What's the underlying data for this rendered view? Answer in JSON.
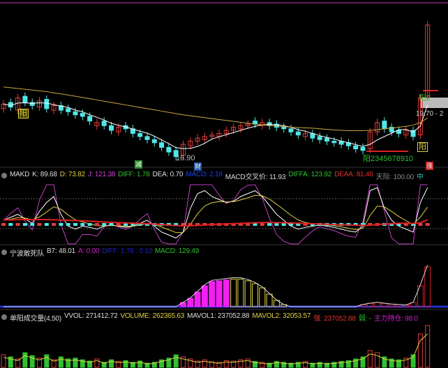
{
  "colors": {
    "up": "#e03c3c",
    "down": "#50e6e6",
    "ma_short": "#ffffff",
    "ma_long": "#c8a83c",
    "top_line": "#c040c0"
  },
  "main": {
    "low_label": "16.90",
    "price_label": "19.70 - 2",
    "labels": {
      "yang": "阳",
      "jian": "减",
      "cai": "财",
      "yang2": "阳2",
      "yang_seq": "阳2345678910",
      "yang_b": "阳",
      "zhang": "涨"
    }
  },
  "panel1": {
    "items": [
      {
        "text": "MAKD",
        "color": "#dddddd"
      },
      {
        "text": "K: 89.68",
        "color": "#dddddd"
      },
      {
        "text": "D: 73.82",
        "color": "#e0d040"
      },
      {
        "text": "J: 121.38",
        "color": "#d040d0"
      },
      {
        "text": "DIFF: 1.78",
        "color": "#30c030"
      },
      {
        "text": "DEA: 0.70",
        "color": "#dddddd"
      },
      {
        "text": "MACD: 2.16",
        "color": "#2040e0"
      },
      {
        "text": "MACD交叉价: 11.93",
        "color": "#dddddd"
      },
      {
        "text": "DIFFA: 123.92",
        "color": "#30c030"
      },
      {
        "text": "DEAA: 81.46",
        "color": "#e03030"
      },
      {
        "text": "天际: 100.00",
        "color": "#888888"
      },
      {
        "text": "中",
        "color": "#30c0c0"
      }
    ]
  },
  "panel2": {
    "items": [
      {
        "text": "宁波敢死队",
        "color": "#dddddd"
      },
      {
        "text": "B7: 48.01",
        "color": "#dddddd"
      },
      {
        "text": "A: 0.00",
        "color": "#d020d0"
      },
      {
        "text": "DIFF: 1.78 : 0.10",
        "color": "#2020c0"
      },
      {
        "text": "MACD: 129.49",
        "color": "#30c030"
      }
    ]
  },
  "panel3": {
    "items": [
      {
        "text": "单阳成交量(4,50)",
        "color": "#dddddd"
      },
      {
        "text": "VVOL: 271412.72",
        "color": "#dddddd"
      },
      {
        "text": "VOLUME: 262365.63",
        "color": "#e0d040"
      },
      {
        "text": "MAVOL1: 237052.88",
        "color": "#dddddd"
      },
      {
        "text": "MAVOL2: 32053.57",
        "color": "#e0d040"
      },
      {
        "text": "强: 237052.88",
        "color": "#e03030"
      },
      {
        "text": "弱: -",
        "color": "#30c030"
      },
      {
        "text": "主力持仓: 98.0",
        "color": "#d020d0"
      }
    ]
  },
  "chart_data": {
    "type": "candlestick",
    "close": [
      20.4,
      20.2,
      20.8,
      20.5,
      20.3,
      20.6,
      20.1,
      20.3,
      20.0,
      19.9,
      19.7,
      19.6,
      19.3,
      19.2,
      19.0,
      18.7,
      18.9,
      18.8,
      18.5,
      18.3,
      18.1,
      17.9,
      17.6,
      17.3,
      17.0,
      17.8,
      18.0,
      18.2,
      18.3,
      18.4,
      18.5,
      18.7,
      18.9,
      19.0,
      19.1,
      19.1,
      19.2,
      19.0,
      18.9,
      18.8,
      18.6,
      18.4,
      18.5,
      18.2,
      18.1,
      18.0,
      17.9,
      17.8,
      17.7,
      17.5,
      17.4,
      18.6,
      19.2,
      18.8,
      18.6,
      18.5,
      18.7,
      18.3,
      20.8,
      25.5
    ],
    "open": [
      20.1,
      20.5,
      20.0,
      20.9,
      20.5,
      20.2,
      20.7,
      20.0,
      20.3,
      20.1,
      19.9,
      19.8,
      19.6,
      19.0,
      19.3,
      19.0,
      18.6,
      19.0,
      18.8,
      18.5,
      18.3,
      18.1,
      17.9,
      17.6,
      17.4,
      17.1,
      17.7,
      18.0,
      18.1,
      18.3,
      18.3,
      18.5,
      18.7,
      18.8,
      19.0,
      19.3,
      19.0,
      19.2,
      19.1,
      18.9,
      18.8,
      18.6,
      18.3,
      18.5,
      18.3,
      18.2,
      18.0,
      18.0,
      17.9,
      17.7,
      17.6,
      17.5,
      18.6,
      19.3,
      18.9,
      18.7,
      18.4,
      18.7,
      18.4,
      20.9
    ],
    "ma_long": [
      21.5,
      21.45,
      21.4,
      21.35,
      21.3,
      21.25,
      21.2,
      21.12,
      21.05,
      20.98,
      20.9,
      20.82,
      20.74,
      20.66,
      20.58,
      20.5,
      20.42,
      20.34,
      20.26,
      20.18,
      20.1,
      20.02,
      19.94,
      19.86,
      19.78,
      19.7,
      19.64,
      19.58,
      19.52,
      19.46,
      19.4,
      19.34,
      19.28,
      19.22,
      19.16,
      19.1,
      19.06,
      19.02,
      18.98,
      18.94,
      18.9,
      18.88,
      18.86,
      18.84,
      18.8,
      18.76,
      18.72,
      18.7,
      18.68,
      18.68,
      18.68,
      18.7,
      18.74,
      18.8,
      18.84,
      18.9,
      18.96,
      19.04,
      19.2,
      19.5
    ],
    "k": [
      40,
      45,
      50,
      42,
      35,
      55,
      70,
      80,
      50,
      30,
      25,
      30,
      28,
      25,
      30,
      32,
      30,
      28,
      30,
      35,
      40,
      30,
      20,
      15,
      10,
      20,
      60,
      85,
      90,
      80,
      75,
      70,
      72,
      80,
      85,
      90,
      80,
      65,
      50,
      40,
      30,
      25,
      28,
      30,
      32,
      30,
      28,
      25,
      22,
      20,
      30,
      90,
      95,
      60,
      40,
      30,
      25,
      20,
      70,
      95
    ],
    "b7": [
      0,
      0,
      0,
      0,
      0,
      0,
      0,
      0,
      0,
      0,
      0,
      0,
      0,
      0,
      0,
      0,
      0,
      0,
      0,
      0,
      0,
      0,
      0,
      0,
      0,
      10,
      20,
      35,
      50,
      60,
      62,
      64,
      66,
      66,
      62,
      55,
      45,
      30,
      15,
      5,
      0,
      0,
      0,
      0,
      0,
      0,
      0,
      0,
      0,
      0,
      5,
      8,
      10,
      8,
      6,
      5,
      4,
      10,
      50,
      95
    ],
    "volume": [
      30,
      25,
      20,
      35,
      28,
      22,
      30,
      18,
      25,
      20,
      22,
      18,
      15,
      20,
      12,
      18,
      14,
      16,
      12,
      15,
      10,
      12,
      18,
      22,
      30,
      25,
      20,
      15,
      18,
      14,
      12,
      16,
      15,
      18,
      20,
      14,
      12,
      10,
      14,
      12,
      10,
      12,
      14,
      10,
      12,
      10,
      12,
      14,
      16,
      20,
      25,
      40,
      35,
      25,
      20,
      18,
      22,
      30,
      80,
      100
    ]
  }
}
